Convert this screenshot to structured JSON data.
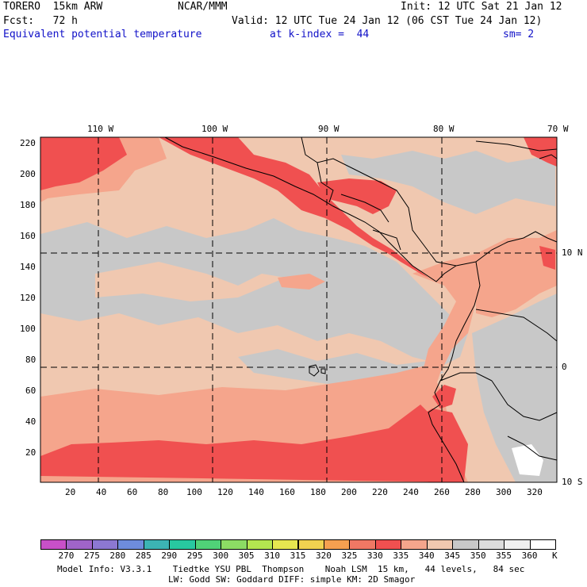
{
  "header": {
    "model": "TORERO  15km ARW",
    "center": "NCAR/MMM",
    "init": "Init: 12 UTC Sat 21 Jan 12",
    "fcst": "Fcst:   72 h",
    "valid": "Valid: 12 UTC Tue 24 Jan 12 (06 CST Tue 24 Jan 12)",
    "field": "Equivalent potential temperature",
    "level": "at k-index =  44",
    "smooth": "sm= 2"
  },
  "map": {
    "lon_labels": [
      "110 W",
      "100 W",
      "90 W",
      "80 W",
      "70 W"
    ],
    "lat_labels": [
      "10 N",
      "0",
      "10 S"
    ],
    "y_ticks": [
      "220",
      "200",
      "180",
      "160",
      "140",
      "120",
      "100",
      "80",
      "60",
      "40",
      "20"
    ],
    "x_ticks": [
      "20",
      "40",
      "60",
      "80",
      "100",
      "120",
      "140",
      "160",
      "180",
      "200",
      "220",
      "240",
      "260",
      "280",
      "300",
      "320"
    ],
    "colors": {
      "c340": "#f0c8b0",
      "c345": "#c8c8c8",
      "c335": "#f5a58c",
      "c330": "#f06e64",
      "c325": "#f05050",
      "c350": "#d2d2d2",
      "c355": "#ffffff",
      "dashed": "#000000",
      "coast": "#000000"
    }
  },
  "colorbar": {
    "labels": [
      "270",
      "275",
      "280",
      "285",
      "290",
      "295",
      "300",
      "305",
      "310",
      "315",
      "320",
      "325",
      "330",
      "335",
      "340",
      "345",
      "350",
      "355",
      "360"
    ],
    "unit": "K",
    "colors": [
      "#c850c8",
      "#a064c8",
      "#8c78d2",
      "#6e8cdc",
      "#3cb4b4",
      "#28c8a0",
      "#50d278",
      "#8cdc64",
      "#b4e650",
      "#e6e650",
      "#f0d250",
      "#f5a050",
      "#f07864",
      "#f05050",
      "#f5a58c",
      "#f0c8b0",
      "#c8c8c8",
      "#dcdcdc",
      "#f0f0f0",
      "#ffffff"
    ]
  },
  "footer": {
    "line1": "Model Info: V3.3.1    Tiedtke YSU PBL  Thompson    Noah LSM  15 km,   44 levels,   84 sec",
    "line2": "LW: Godd SW: Goddard DIFF: simple KM: 2D Smagor"
  }
}
